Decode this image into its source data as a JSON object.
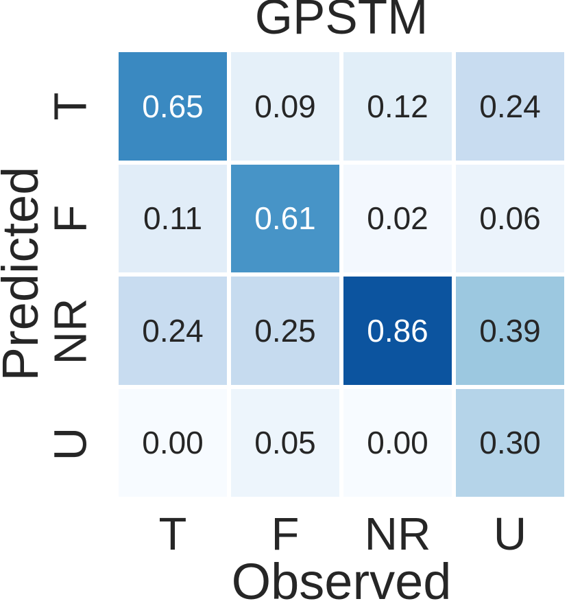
{
  "chart_data": {
    "type": "heatmap",
    "title": "GPSTM",
    "xlabel": "Observed",
    "ylabel": "Predicted",
    "x_categories": [
      "T",
      "F",
      "NR",
      "U"
    ],
    "y_categories": [
      "T",
      "F",
      "NR",
      "U"
    ],
    "colormap": "Blues",
    "vmin": 0.0,
    "vmax": 1.0,
    "grid": "off",
    "legend": "none",
    "series": [
      {
        "name": "T",
        "values": [
          0.65,
          0.09,
          0.12,
          0.24
        ]
      },
      {
        "name": "F",
        "values": [
          0.11,
          0.61,
          0.02,
          0.06
        ]
      },
      {
        "name": "NR",
        "values": [
          0.24,
          0.25,
          0.86,
          0.39
        ]
      },
      {
        "name": "U",
        "values": [
          0.0,
          0.05,
          0.0,
          0.3
        ]
      }
    ],
    "cells": [
      {
        "value": "0.65",
        "bg": "#3a89c1",
        "fg": "#ffffff"
      },
      {
        "value": "0.09",
        "bg": "#e5f0f9",
        "fg": "#262626"
      },
      {
        "value": "0.12",
        "bg": "#e1eef8",
        "fg": "#262626"
      },
      {
        "value": "0.24",
        "bg": "#c8dcf0",
        "fg": "#262626"
      },
      {
        "value": "0.11",
        "bg": "#e1edf8",
        "fg": "#262626"
      },
      {
        "value": "0.61",
        "bg": "#4794c7",
        "fg": "#ffffff"
      },
      {
        "value": "0.02",
        "bg": "#f3f8fe",
        "fg": "#262626"
      },
      {
        "value": "0.06",
        "bg": "#ebf3fb",
        "fg": "#262626"
      },
      {
        "value": "0.24",
        "bg": "#c8dcf0",
        "fg": "#262626"
      },
      {
        "value": "0.25",
        "bg": "#c6dbef",
        "fg": "#262626"
      },
      {
        "value": "0.86",
        "bg": "#0c549f",
        "fg": "#ffffff"
      },
      {
        "value": "0.39",
        "bg": "#9cc8e0",
        "fg": "#262626"
      },
      {
        "value": "0.00",
        "bg": "#f7fbff",
        "fg": "#262626"
      },
      {
        "value": "0.05",
        "bg": "#edf5fc",
        "fg": "#262626"
      },
      {
        "value": "0.00",
        "bg": "#f7fbff",
        "fg": "#262626"
      },
      {
        "value": "0.30",
        "bg": "#b5d4e9",
        "fg": "#262626"
      }
    ],
    "text_color": "#262626",
    "gridline_color": "#ffffff"
  }
}
